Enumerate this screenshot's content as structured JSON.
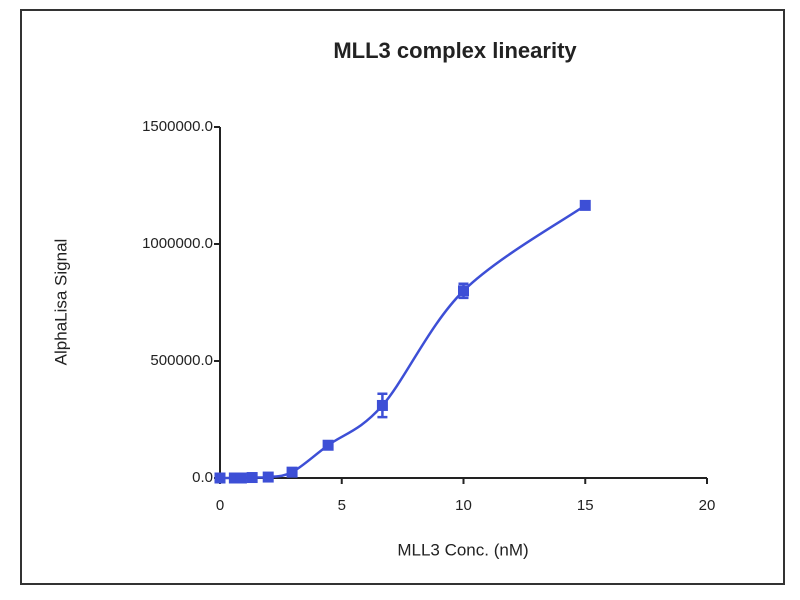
{
  "chart_data": {
    "type": "line",
    "title": "MLL3 complex linearity",
    "x_label": "MLL3 Conc. (nM)",
    "y_label": "AlphaLisa Signal",
    "xlim": [
      0,
      20
    ],
    "xticks": [
      0,
      5,
      10,
      15,
      20
    ],
    "ylim": [
      0,
      1500000
    ],
    "yticks": [
      {
        "value": 0,
        "label": "0.0"
      },
      {
        "value": 500000,
        "label": "500000.0"
      },
      {
        "value": 1000000,
        "label": "1000000.0"
      },
      {
        "value": 1500000,
        "label": "1500000.0"
      }
    ],
    "series": [
      {
        "color": "#3d4fd6",
        "x": [
          0,
          0.59,
          0.88,
          1.32,
          1.98,
          2.96,
          4.44,
          6.67,
          10,
          15
        ],
        "values": [
          0,
          0,
          0,
          2000,
          4000,
          25000,
          140000,
          310000,
          800000,
          1165000
        ],
        "errors": [
          0,
          0,
          0,
          0,
          0,
          5000,
          12000,
          50000,
          30000,
          10000
        ]
      }
    ]
  }
}
